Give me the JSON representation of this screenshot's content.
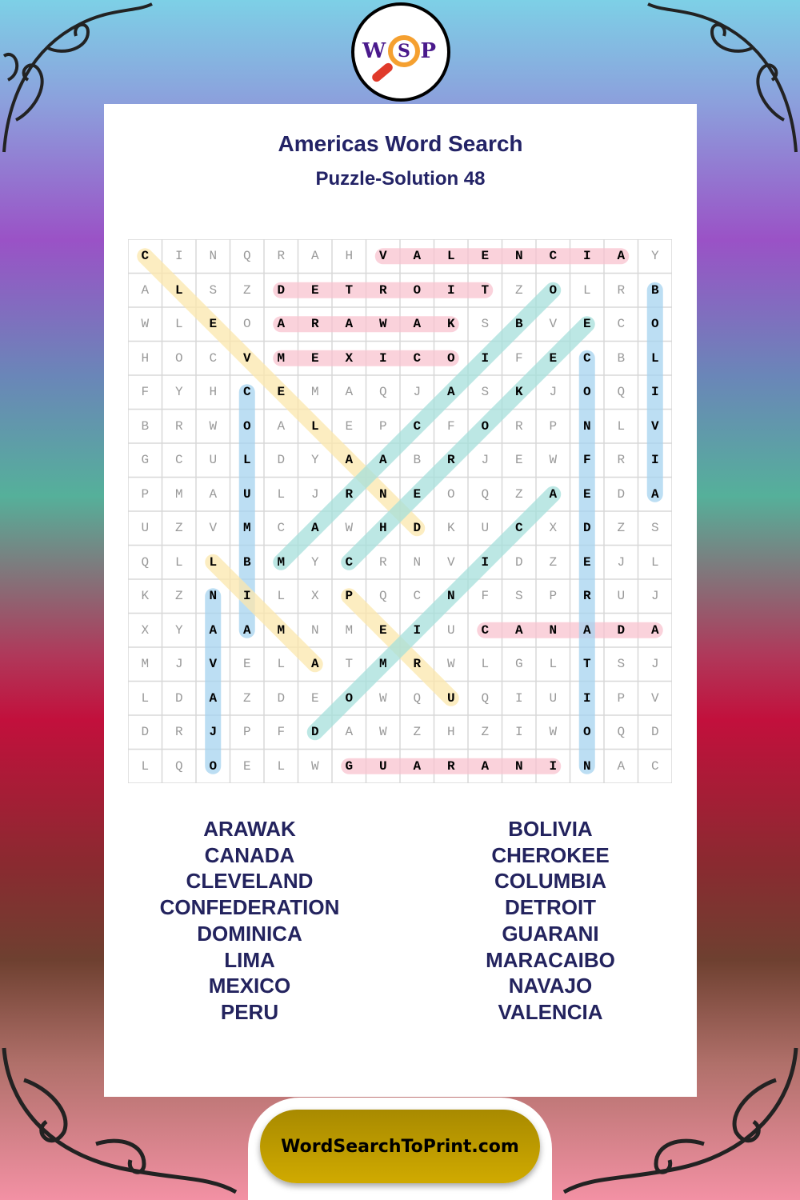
{
  "logo": {
    "letters": [
      "W",
      "S",
      "P"
    ]
  },
  "header": {
    "title": "Americas Word Search",
    "subtitle": "Puzzle-Solution 48"
  },
  "grid": [
    "CINQRAHVALENCIAY",
    "ALSZDETROITZOLRB",
    "WLEOARAWAKSBVECO",
    "HOCVMEXICOIFECBL",
    "FYHCEMAQJASKJOQI",
    "BRWOALEPCFORPNLV",
    "GCULDYAABRJEWFRI",
    "PMAULJRNEOQZAEDA",
    "UZVMCAWHDKUCXDZS",
    "QLLBMYCRNVIDZEJL",
    "KZNILXPQCNFSPRUJ",
    "XYAAMNMEIUCANADA",
    "MJVELATMRWLGLTSJ",
    "LDAZDEOWQUQIUIPV",
    "DRJPFDAWZHZIWOQD",
    "LQOELWGUARANINAC"
  ],
  "colors": {
    "pink": "#f9c3d0",
    "blue": "#a6d3f0",
    "yellow": "#fce7ad",
    "teal": "#a6e0db",
    "text": "#23235e",
    "footer": "#c9a400"
  },
  "solutions": [
    {
      "word": "VALENCIA",
      "start": [
        0,
        7
      ],
      "end": [
        0,
        14
      ],
      "color": "pink"
    },
    {
      "word": "DETROIT",
      "start": [
        1,
        4
      ],
      "end": [
        1,
        10
      ],
      "color": "pink"
    },
    {
      "word": "ARAWAK",
      "start": [
        2,
        4
      ],
      "end": [
        2,
        9
      ],
      "color": "pink"
    },
    {
      "word": "MEXICO",
      "start": [
        3,
        4
      ],
      "end": [
        3,
        9
      ],
      "color": "pink"
    },
    {
      "word": "CANADA",
      "start": [
        11,
        10
      ],
      "end": [
        11,
        15
      ],
      "color": "pink"
    },
    {
      "word": "GUARANI",
      "start": [
        15,
        6
      ],
      "end": [
        15,
        12
      ],
      "color": "pink"
    },
    {
      "word": "BOLIVIA",
      "start": [
        1,
        15
      ],
      "end": [
        7,
        15
      ],
      "color": "blue"
    },
    {
      "word": "CONFEDERATION",
      "start": [
        3,
        13
      ],
      "end": [
        15,
        13
      ],
      "color": "blue"
    },
    {
      "word": "COLUMBIA",
      "start": [
        4,
        3
      ],
      "end": [
        11,
        3
      ],
      "color": "blue"
    },
    {
      "word": "NAVAJO",
      "start": [
        10,
        2
      ],
      "end": [
        15,
        2
      ],
      "color": "blue"
    },
    {
      "word": "CLEVELAND",
      "start": [
        0,
        0
      ],
      "end": [
        8,
        8
      ],
      "color": "yellow"
    },
    {
      "word": "LIMA",
      "start": [
        9,
        2
      ],
      "end": [
        12,
        5
      ],
      "color": "yellow"
    },
    {
      "word": "PERU",
      "start": [
        10,
        6
      ],
      "end": [
        13,
        9
      ],
      "color": "yellow"
    },
    {
      "word": "MARACAIBO",
      "start": [
        9,
        4
      ],
      "end": [
        1,
        12
      ],
      "color": "teal"
    },
    {
      "word": "CHEROKEE",
      "start": [
        9,
        6
      ],
      "end": [
        2,
        13
      ],
      "color": "teal"
    },
    {
      "word": "DOMINICA",
      "start": [
        14,
        5
      ],
      "end": [
        7,
        12
      ],
      "color": "teal"
    }
  ],
  "word_list": {
    "left": [
      "ARAWAK",
      "CANADA",
      "CLEVELAND",
      "CONFEDERATION",
      "DOMINICA",
      "LIMA",
      "MEXICO",
      "PERU"
    ],
    "right": [
      "BOLIVIA",
      "CHEROKEE",
      "COLUMBIA",
      "DETROIT",
      "GUARANI",
      "MARACAIBO",
      "NAVAJO",
      "VALENCIA"
    ]
  },
  "footer": {
    "site": "WordSearchToPrint.com"
  }
}
